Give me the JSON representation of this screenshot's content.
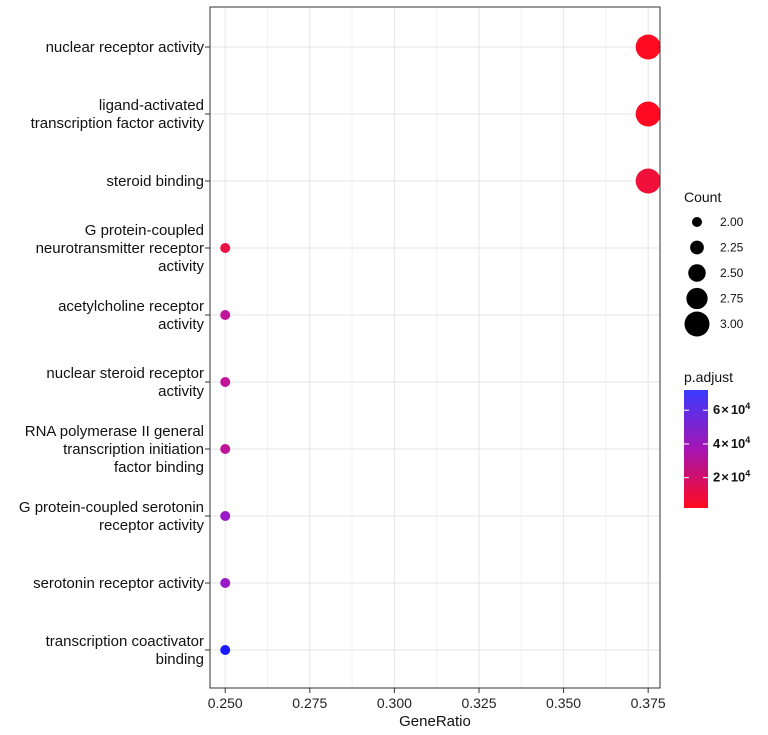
{
  "chart_data": {
    "type": "scatter",
    "title": "",
    "xlabel": "GeneRatio",
    "ylabel": "",
    "xlim": [
      0.2455,
      0.3785
    ],
    "x_ticks": [
      "0.250",
      "0.275",
      "0.300",
      "0.325",
      "0.350",
      "0.375"
    ],
    "x_tick_values": [
      0.25,
      0.275,
      0.3,
      0.325,
      0.35,
      0.375
    ],
    "grid": true,
    "points": [
      {
        "term_lines": [
          "nuclear receptor activity"
        ],
        "gene_ratio": 0.375,
        "count": 3,
        "p_adjust_color": "#ff0a22"
      },
      {
        "term_lines": [
          "ligand-activated",
          "transcription factor activity"
        ],
        "gene_ratio": 0.375,
        "count": 3,
        "p_adjust_color": "#ff0a22"
      },
      {
        "term_lines": [
          "steroid binding"
        ],
        "gene_ratio": 0.375,
        "count": 3,
        "p_adjust_color": "#f0103a"
      },
      {
        "term_lines": [
          "G protein-coupled",
          "neurotransmitter receptor",
          "activity"
        ],
        "gene_ratio": 0.25,
        "count": 2,
        "p_adjust_color": "#ee1043"
      },
      {
        "term_lines": [
          "acetylcholine receptor",
          "activity"
        ],
        "gene_ratio": 0.25,
        "count": 2,
        "p_adjust_color": "#c2149a"
      },
      {
        "term_lines": [
          "nuclear steroid receptor",
          "activity"
        ],
        "gene_ratio": 0.25,
        "count": 2,
        "p_adjust_color": "#c2149a"
      },
      {
        "term_lines": [
          "RNA polymerase II general",
          "transcription initiation",
          "factor binding"
        ],
        "gene_ratio": 0.25,
        "count": 2,
        "p_adjust_color": "#c2149a"
      },
      {
        "term_lines": [
          "G protein-coupled serotonin",
          "receptor activity"
        ],
        "gene_ratio": 0.25,
        "count": 2,
        "p_adjust_color": "#9a18c8"
      },
      {
        "term_lines": [
          "serotonin receptor activity"
        ],
        "gene_ratio": 0.25,
        "count": 2,
        "p_adjust_color": "#9a18c8"
      },
      {
        "term_lines": [
          "transcription coactivator",
          "binding"
        ],
        "gene_ratio": 0.25,
        "count": 2,
        "p_adjust_color": "#1a1aff"
      }
    ],
    "size_legend": {
      "title": "Count",
      "entries": [
        "2.00",
        "2.25",
        "2.50",
        "2.75",
        "3.00"
      ],
      "values": [
        2.0,
        2.25,
        2.5,
        2.75,
        3.0
      ]
    },
    "color_legend": {
      "title": "p.adjust",
      "ticks": [
        {
          "mantissa": "6",
          "times": "×",
          "base": "10",
          "exponent": "4",
          "value": 60000
        },
        {
          "mantissa": "4",
          "times": "×",
          "base": "10",
          "exponent": "4",
          "value": 40000
        },
        {
          "mantissa": "2",
          "times": "×",
          "base": "10",
          "exponent": "4",
          "value": 20000
        }
      ],
      "low_color": "#ff0a1e",
      "high_color": "#3a3aff",
      "range": [
        2000,
        72000
      ]
    }
  }
}
